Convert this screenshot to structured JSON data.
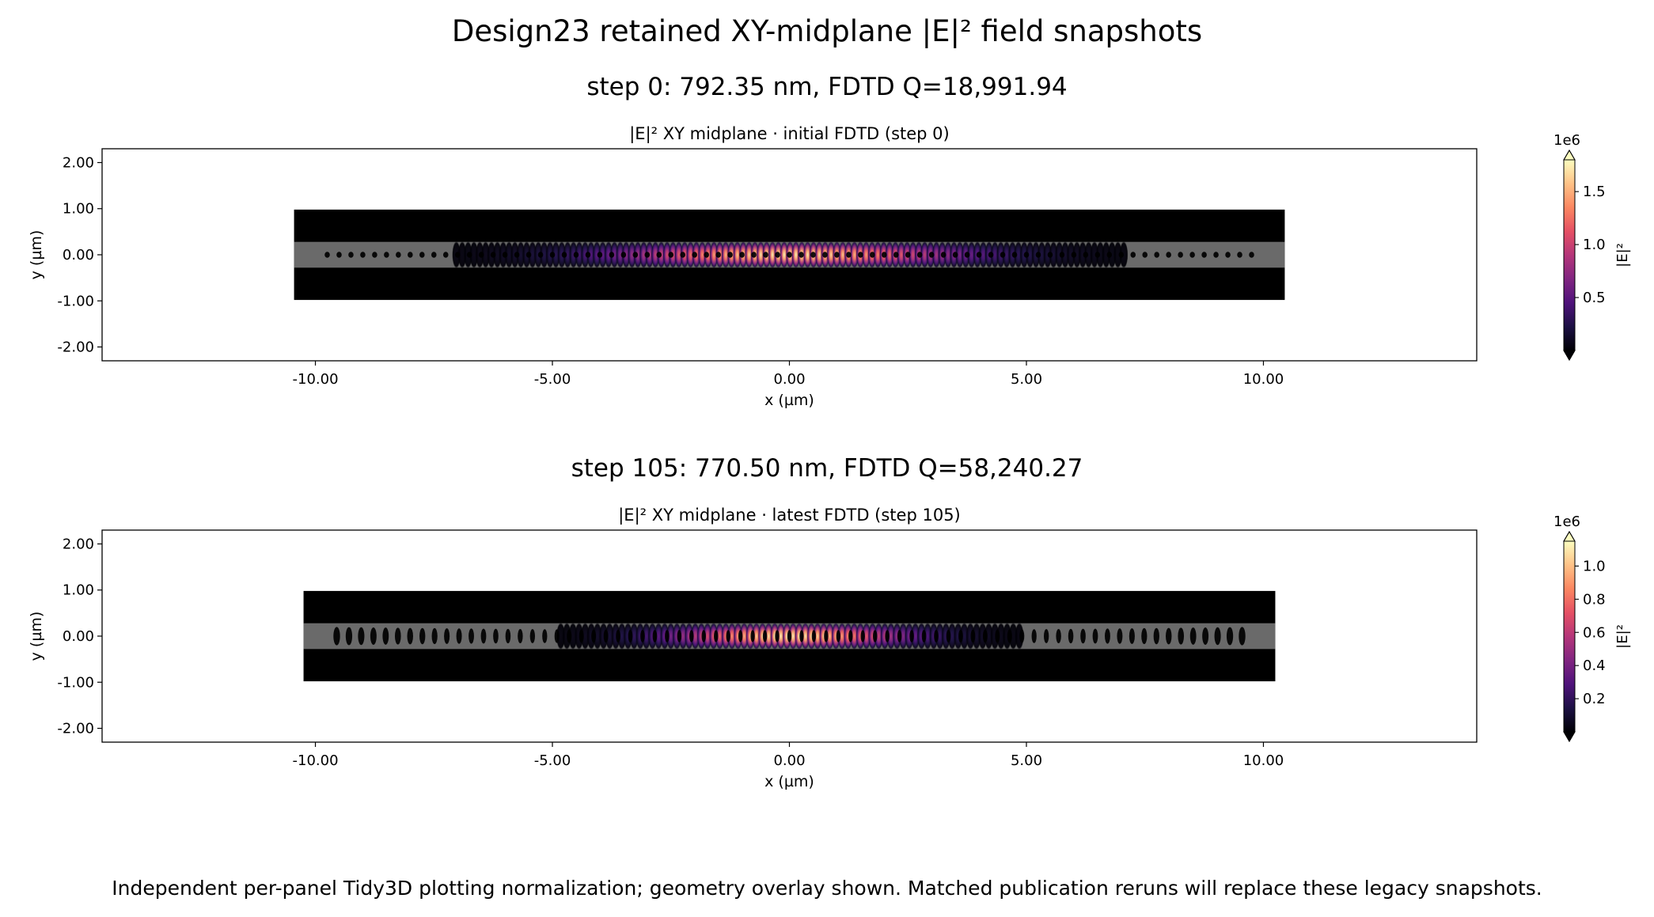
{
  "figure": {
    "suptitle": "Design23 retained XY-midplane |E|² field snapshots",
    "footer": "Independent per-panel Tidy3D plotting normalization; geometry overlay shown. Matched publication reruns will replace these legacy snapshots."
  },
  "colors": {
    "cmap": [
      "#000004",
      "#1c1044",
      "#4f127b",
      "#812581",
      "#b5367a",
      "#e55064",
      "#fb8761",
      "#fec287",
      "#fcfdbf"
    ],
    "geometry_slab": "#000000",
    "geometry_core": "#6a6a6a",
    "holes": "#000000"
  },
  "chart_data": [
    {
      "type": "heatmap",
      "suptitle": "step 0: 792.35 nm, FDTD Q=18,991.94",
      "title": "|E|²  XY midplane · initial FDTD (step 0)",
      "xlabel": "x (µm)",
      "ylabel": "y (µm)",
      "xlim": [
        -14.5,
        14.5
      ],
      "ylim": [
        -2.3,
        2.3
      ],
      "xticks": [
        -10,
        -5,
        0,
        5,
        10
      ],
      "xtick_labels": [
        "-10.00",
        "-5.00",
        "0.00",
        "5.00",
        "10.00"
      ],
      "yticks": [
        2,
        1,
        0,
        -1,
        -2
      ],
      "ytick_labels": [
        "2.00",
        "1.00",
        "0.00",
        "-1.00",
        "-2.00"
      ],
      "sim_region": {
        "x": [
          -10.45,
          10.45
        ],
        "y": [
          -0.98,
          0.98
        ]
      },
      "waveguide_core_y": [
        -0.28,
        0.28
      ],
      "holes": {
        "count": 79,
        "x_start": -9.75,
        "x_end": 9.75,
        "rx": [
          0.055,
          0.055
        ],
        "ry": [
          0.065,
          0.065
        ]
      },
      "field": {
        "center_x": 0.0,
        "sigma_x": 2.55,
        "sigma_y": 0.19,
        "period_um": 0.247
      },
      "colorbar": {
        "label": "|E|²",
        "scale_label": "1e6",
        "min": 0.0,
        "max": 1.8,
        "ticks": [
          0.5,
          1.0,
          1.5
        ],
        "tick_labels": [
          "0.5",
          "1.0",
          "1.5"
        ]
      }
    },
    {
      "type": "heatmap",
      "suptitle": "step 105: 770.50 nm, FDTD Q=58,240.27",
      "title": "|E|²  XY midplane · latest FDTD (step 105)",
      "xlabel": "x (µm)",
      "ylabel": "y (µm)",
      "xlim": [
        -14.5,
        14.5
      ],
      "ylim": [
        -2.3,
        2.3
      ],
      "xticks": [
        -10,
        -5,
        0,
        5,
        10
      ],
      "xtick_labels": [
        "-10.00",
        "-5.00",
        "0.00",
        "5.00",
        "10.00"
      ],
      "yticks": [
        2,
        1,
        0,
        -1,
        -2
      ],
      "ytick_labels": [
        "2.00",
        "1.00",
        "0.00",
        "-1.00",
        "-2.00"
      ],
      "sim_region": {
        "x": [
          -10.25,
          10.25
        ],
        "y": [
          -0.98,
          0.98
        ]
      },
      "waveguide_core_y": [
        -0.28,
        0.28
      ],
      "holes": {
        "count": 75,
        "x_start": -9.55,
        "x_end": 9.55,
        "rx": [
          0.07,
          0.045
        ],
        "ry": [
          0.2,
          0.13
        ]
      },
      "field": {
        "center_x": 0.0,
        "sigma_x": 1.75,
        "sigma_y": 0.19,
        "period_um": 0.258
      },
      "colorbar": {
        "label": "|E|²",
        "scale_label": "1e6",
        "min": 0.0,
        "max": 1.15,
        "ticks": [
          0.2,
          0.4,
          0.6,
          0.8,
          1.0
        ],
        "tick_labels": [
          "0.2",
          "0.4",
          "0.6",
          "0.8",
          "1.0"
        ]
      }
    }
  ]
}
